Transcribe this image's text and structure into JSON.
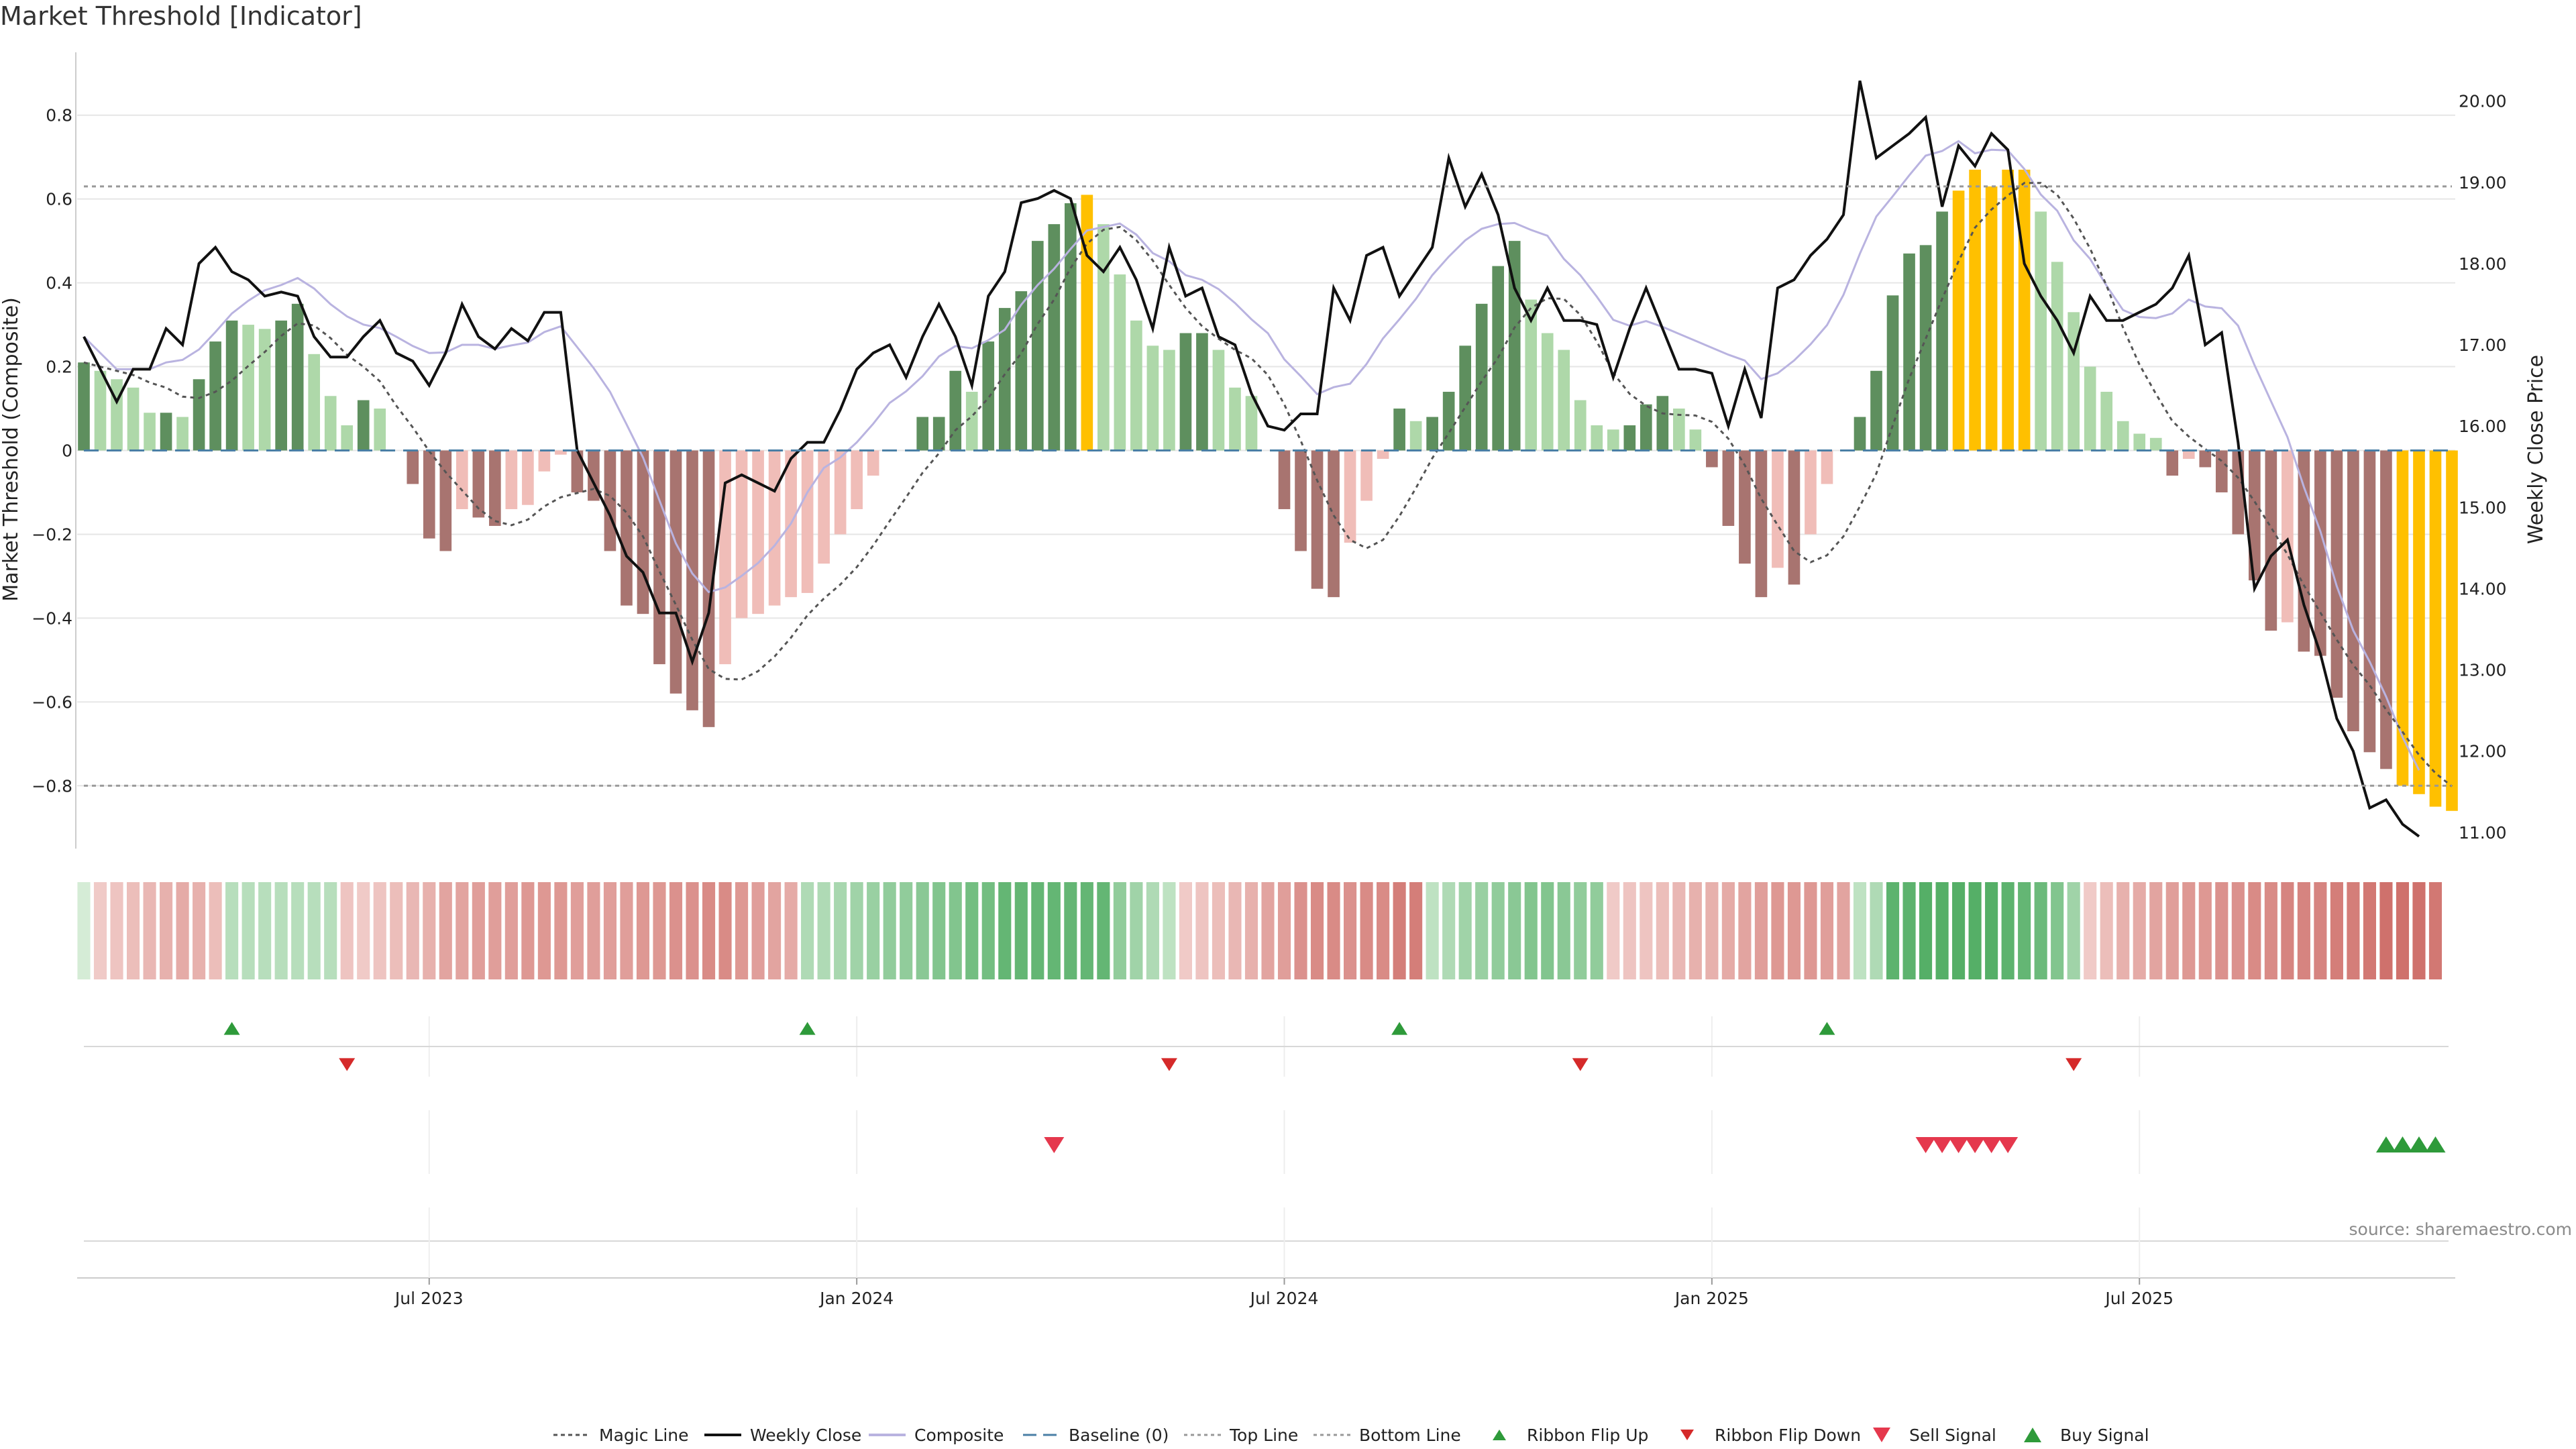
{
  "title": "Market Threshold [Indicator]",
  "source": "source: sharemaestro.com",
  "chart_data": {
    "type": "bar",
    "title": "Market Threshold [Indicator]",
    "ylabel_left": "Market Threshold (Composite)",
    "ylabel_right": "Weekly Close Price",
    "ylim_left": [
      -0.95,
      0.95
    ],
    "ylim_right": [
      10.8,
      20.6
    ],
    "yticks_left": [
      0.8,
      0.6,
      0.4,
      0.2,
      0,
      -0.2,
      -0.4,
      -0.6,
      -0.8
    ],
    "yticks_left_labels": [
      "0.8",
      "0.6",
      "0.4",
      "0.2",
      "0",
      "−0.2",
      "−0.4",
      "−0.6",
      "−0.8"
    ],
    "yticks_right": [
      20,
      19,
      18,
      17,
      16,
      15,
      14,
      13,
      12,
      11
    ],
    "yticks_right_labels": [
      "20.00",
      "19.00",
      "18.00",
      "17.00",
      "16.00",
      "15.00",
      "14.00",
      "13.00",
      "12.00",
      "11.00"
    ],
    "top_line": 0.63,
    "bottom_line": -0.8,
    "x_ticks": [
      {
        "label": "Jul 2023",
        "week": 21
      },
      {
        "label": "Jan 2024",
        "week": 47
      },
      {
        "label": "Jul 2024",
        "week": 73
      },
      {
        "label": "Jan 2025",
        "week": 99
      },
      {
        "label": "Jul 2025",
        "week": 125
      }
    ],
    "composite_bars": [
      0.21,
      0.19,
      0.17,
      0.15,
      0.09,
      0.09,
      0.08,
      0.17,
      0.26,
      0.31,
      0.3,
      0.29,
      0.31,
      0.35,
      0.23,
      0.13,
      0.06,
      0.12,
      0.1,
      0,
      -0.08,
      -0.21,
      -0.24,
      -0.14,
      -0.16,
      -0.18,
      -0.14,
      -0.13,
      -0.05,
      -0.01,
      -0.1,
      -0.12,
      -0.24,
      -0.37,
      -0.39,
      -0.51,
      -0.58,
      -0.62,
      -0.66,
      -0.51,
      -0.4,
      -0.39,
      -0.37,
      -0.35,
      -0.34,
      -0.27,
      -0.2,
      -0.14,
      -0.06,
      0,
      0,
      0.08,
      0.08,
      0.19,
      0.14,
      0.26,
      0.34,
      0.38,
      0.5,
      0.54,
      0.59,
      0.61,
      0.54,
      0.42,
      0.31,
      0.25,
      0.24,
      0.28,
      0.28,
      0.24,
      0.15,
      0.13,
      0,
      -0.14,
      -0.24,
      -0.33,
      -0.35,
      -0.22,
      -0.12,
      -0.02,
      0.1,
      0.07,
      0.08,
      0.14,
      0.25,
      0.35,
      0.44,
      0.5,
      0.36,
      0.28,
      0.24,
      0.12,
      0.06,
      0.05,
      0.06,
      0.11,
      0.13,
      0.1,
      0.05,
      -0.04,
      -0.18,
      -0.27,
      -0.35,
      -0.28,
      -0.32,
      -0.2,
      -0.08,
      0,
      0.08,
      0.19,
      0.37,
      0.47,
      0.49,
      0.57,
      0.62,
      0.67,
      0.63,
      0.67,
      0.67,
      0.57,
      0.45,
      0.33,
      0.2,
      0.14,
      0.07,
      0.04,
      0.03,
      -0.06,
      -0.02,
      -0.04,
      -0.1,
      -0.2,
      -0.31,
      -0.43,
      -0.41,
      -0.48,
      -0.49,
      -0.59,
      -0.67,
      -0.72,
      -0.76,
      -0.8,
      -0.82,
      -0.85,
      -0.86
    ],
    "weekly_close": [
      17.1,
      16.7,
      16.3,
      16.7,
      16.7,
      17.2,
      17,
      18,
      18.2,
      17.9,
      17.8,
      17.6,
      17.65,
      17.6,
      17.1,
      16.85,
      16.85,
      17.1,
      17.3,
      16.9,
      16.8,
      16.5,
      16.9,
      17.5,
      17.1,
      16.95,
      17.2,
      17.05,
      17.4,
      17.4,
      15.7,
      15.3,
      14.9,
      14.4,
      14.2,
      13.7,
      13.7,
      13.1,
      13.7,
      15.3,
      15.4,
      15.3,
      15.2,
      15.6,
      15.8,
      15.8,
      16.2,
      16.7,
      16.9,
      17,
      16.6,
      17.1,
      17.5,
      17.1,
      16.5,
      17.6,
      17.9,
      18.75,
      18.8,
      18.9,
      18.8,
      18.1,
      17.9,
      18.2,
      17.8,
      17.2,
      18.2,
      17.6,
      17.7,
      17.1,
      17.0,
      16.4,
      16.0,
      15.95,
      16.15,
      16.15,
      17.7,
      17.3,
      18.1,
      18.2,
      17.6,
      17.9,
      18.2,
      19.3,
      18.7,
      19.1,
      18.6,
      17.7,
      17.3,
      17.7,
      17.3,
      17.3,
      17.25,
      16.6,
      17.2,
      17.7,
      17.2,
      16.7,
      16.7,
      16.65,
      16.0,
      16.7,
      16.1,
      17.7,
      17.8,
      18.1,
      18.3,
      18.6,
      20.25,
      19.3,
      19.45,
      19.6,
      19.8,
      18.7,
      19.45,
      19.2,
      19.6,
      19.4,
      18.0,
      17.6,
      17.3,
      16.9,
      17.6,
      17.3,
      17.3,
      17.4,
      17.5,
      17.7,
      18.1,
      17.0,
      17.15,
      15.8,
      14.0,
      14.4,
      14.6,
      13.8,
      13.2,
      12.4,
      12.0,
      11.3,
      11.4,
      11.1,
      10.95
    ],
    "ribbon_values": [
      0.05,
      -0.1,
      -0.15,
      -0.2,
      -0.25,
      -0.3,
      -0.35,
      -0.3,
      -0.2,
      0.25,
      0.25,
      0.25,
      0.25,
      0.25,
      0.25,
      0.25,
      -0.15,
      -0.1,
      -0.15,
      -0.2,
      -0.25,
      -0.3,
      -0.4,
      -0.4,
      -0.45,
      -0.45,
      -0.45,
      -0.5,
      -0.5,
      -0.5,
      -0.45,
      -0.45,
      -0.45,
      -0.45,
      -0.5,
      -0.5,
      -0.55,
      -0.55,
      -0.6,
      -0.6,
      -0.5,
      -0.45,
      -0.4,
      -0.35,
      0.3,
      0.3,
      0.35,
      0.4,
      0.45,
      0.5,
      0.5,
      0.55,
      0.6,
      0.6,
      0.7,
      0.7,
      0.8,
      0.8,
      0.8,
      0.8,
      0.8,
      0.8,
      0.8,
      0.5,
      0.4,
      0.3,
      0.2,
      -0.1,
      -0.15,
      -0.2,
      -0.25,
      -0.3,
      -0.4,
      -0.45,
      -0.55,
      -0.6,
      -0.6,
      -0.55,
      -0.6,
      -0.6,
      -0.7,
      -0.7,
      0.2,
      0.3,
      0.4,
      0.45,
      0.5,
      0.55,
      0.6,
      0.6,
      0.55,
      0.5,
      0.5,
      -0.1,
      -0.15,
      -0.15,
      -0.2,
      -0.25,
      -0.3,
      -0.3,
      -0.35,
      -0.4,
      -0.45,
      -0.5,
      -0.5,
      -0.5,
      -0.45,
      -0.4,
      0.2,
      0.3,
      0.85,
      0.85,
      0.9,
      0.9,
      0.9,
      0.9,
      0.9,
      0.85,
      0.8,
      0.75,
      0.6,
      0.4,
      -0.1,
      -0.2,
      -0.3,
      -0.35,
      -0.4,
      -0.45,
      -0.5,
      -0.5,
      -0.55,
      -0.55,
      -0.6,
      -0.6,
      -0.65,
      -0.65,
      -0.65,
      -0.7,
      -0.7,
      -0.75,
      -0.8,
      -0.8,
      -0.8,
      -0.75
    ],
    "ribbon_flip_up": [
      9,
      44,
      80,
      106
    ],
    "ribbon_flip_down": [
      16,
      66,
      91,
      121
    ],
    "sell_signals": [
      59,
      112,
      113,
      114,
      115,
      116,
      117
    ],
    "buy_signals": [
      140,
      141,
      142,
      143
    ],
    "legend": [
      "Magic Line",
      "Weekly Close",
      "Composite",
      "Baseline (0)",
      "Top Line",
      "Bottom Line",
      "Ribbon Flip Up",
      "Ribbon Flip Down",
      "Sell Signal",
      "Buy Signal"
    ],
    "colors": {
      "pos_strong": "#5e8f5e",
      "pos_weak": "#aed8a9",
      "neg_strong": "#a87470",
      "neg_weak": "#f0bdb8",
      "extreme": "#ffc000",
      "close": "#111111",
      "composite_line": "#b9b3e0",
      "magic": "#555555",
      "baseline": "#4a7fa6",
      "ref": "#999999",
      "flip_up": "#2e9a3a",
      "flip_down": "#d52a2a",
      "sell": "#e5384d",
      "buy": "#2e9a3a",
      "grid": "#e6e6e6"
    }
  }
}
